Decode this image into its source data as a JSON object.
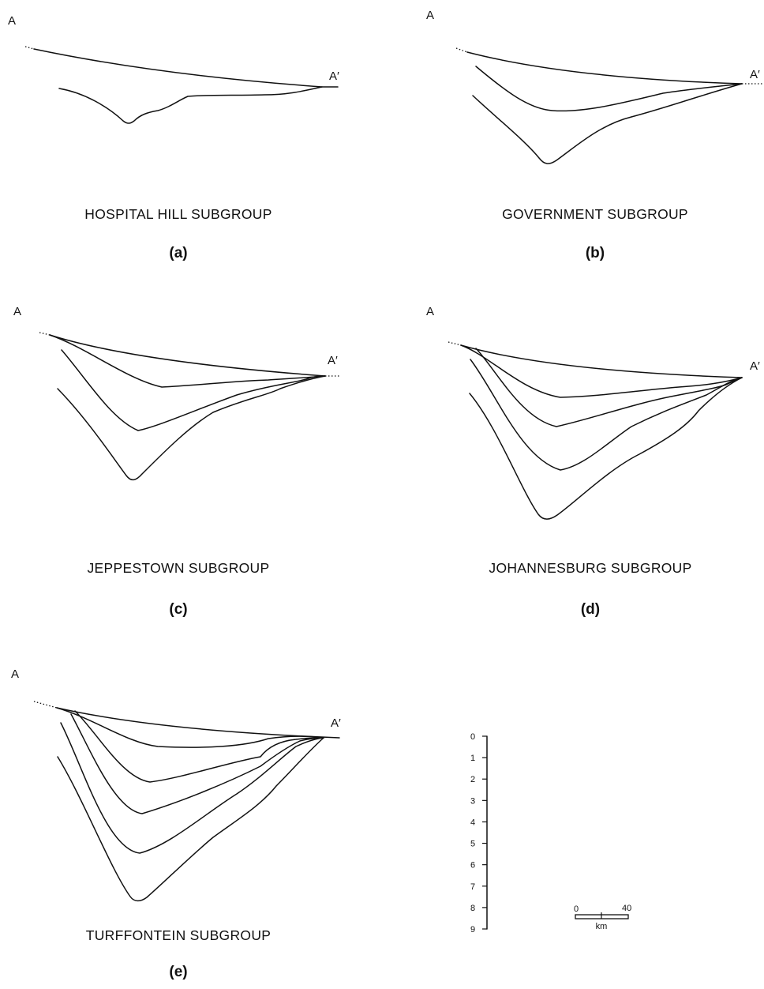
{
  "panels": [
    {
      "id": "a",
      "title": "HOSPITAL HILL SUBGROUP",
      "tag": "(a)",
      "start": "A",
      "end": "A′"
    },
    {
      "id": "b",
      "title": "GOVERNMENT SUBGROUP",
      "tag": "(b)",
      "start": "A",
      "end": "A′"
    },
    {
      "id": "c",
      "title": "JEPPESTOWN  SUBGROUP",
      "tag": "(c)",
      "start": "A",
      "end": "A′"
    },
    {
      "id": "d",
      "title": "JOHANNESBURG SUBGROUP",
      "tag": "(d)",
      "start": "A",
      "end": "A′"
    },
    {
      "id": "e",
      "title": "TURFFONTEIN SUBGROUP",
      "tag": "(e)",
      "start": "A",
      "end": "A′"
    }
  ],
  "depth_scale": {
    "ticks": [
      "0",
      "1",
      "2",
      "3",
      "4",
      "5",
      "6",
      "7",
      "8",
      "9"
    ]
  },
  "length_scale": {
    "start": "0",
    "end": "40",
    "unit": "km"
  }
}
